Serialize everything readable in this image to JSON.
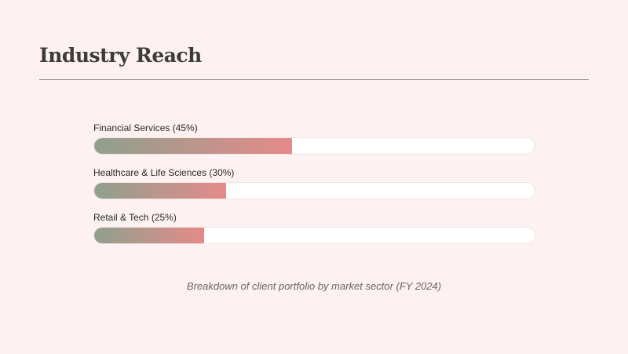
{
  "header": {
    "title": "Industry Reach"
  },
  "sectors": [
    {
      "label": "Financial Services (45%)",
      "share": 0.45
    },
    {
      "label": "Healthcare & Life Sciences (30%)",
      "share": 0.3
    },
    {
      "label": "Retail & Tech (25%)",
      "share": 0.25
    }
  ],
  "caption": "Breakdown of client portfolio by market sector (FY 2024)",
  "colors": {
    "background": "#fdf1f1",
    "fill_start": "#8fa08c",
    "fill_end": "#e68a8a",
    "track": "#ffffff"
  }
}
